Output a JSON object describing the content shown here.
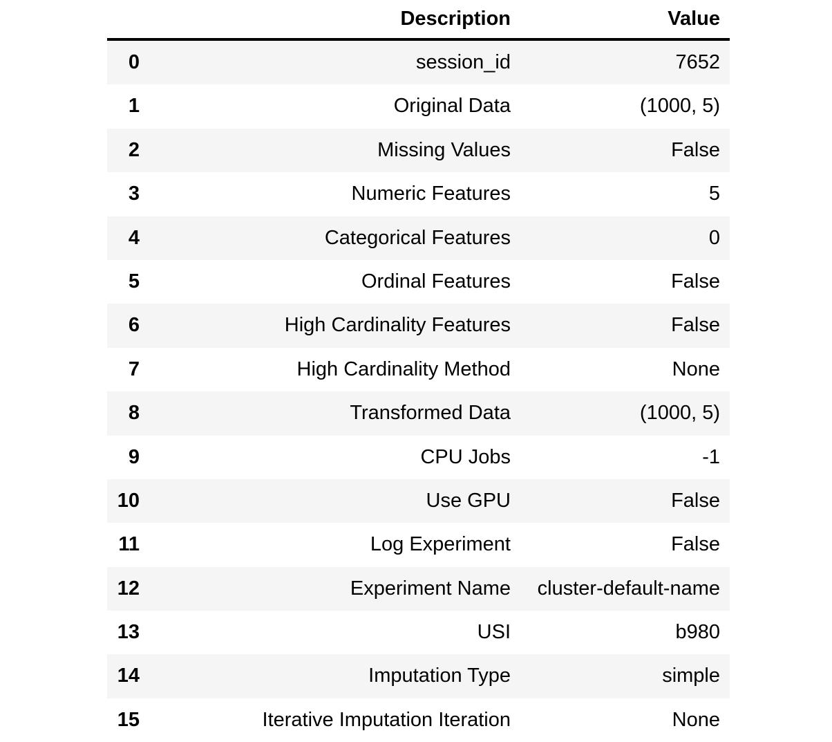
{
  "table": {
    "columns": {
      "index_label": "",
      "description": "Description",
      "value": "Value"
    },
    "stripe_color": "#f5f5f5",
    "header_rule_color": "#000000",
    "rows": [
      {
        "index": "0",
        "description": "session_id",
        "value": "7652"
      },
      {
        "index": "1",
        "description": "Original Data",
        "value": "(1000, 5)"
      },
      {
        "index": "2",
        "description": "Missing Values",
        "value": "False"
      },
      {
        "index": "3",
        "description": "Numeric Features",
        "value": "5"
      },
      {
        "index": "4",
        "description": "Categorical Features",
        "value": "0"
      },
      {
        "index": "5",
        "description": "Ordinal Features",
        "value": "False"
      },
      {
        "index": "6",
        "description": "High Cardinality Features",
        "value": "False"
      },
      {
        "index": "7",
        "description": "High Cardinality Method",
        "value": "None"
      },
      {
        "index": "8",
        "description": "Transformed Data",
        "value": "(1000, 5)"
      },
      {
        "index": "9",
        "description": "CPU Jobs",
        "value": "-1"
      },
      {
        "index": "10",
        "description": "Use GPU",
        "value": "False"
      },
      {
        "index": "11",
        "description": "Log Experiment",
        "value": "False"
      },
      {
        "index": "12",
        "description": "Experiment Name",
        "value": "cluster-default-name"
      },
      {
        "index": "13",
        "description": "USI",
        "value": "b980"
      },
      {
        "index": "14",
        "description": "Imputation Type",
        "value": "simple"
      },
      {
        "index": "15",
        "description": "Iterative Imputation Iteration",
        "value": "None"
      }
    ]
  }
}
